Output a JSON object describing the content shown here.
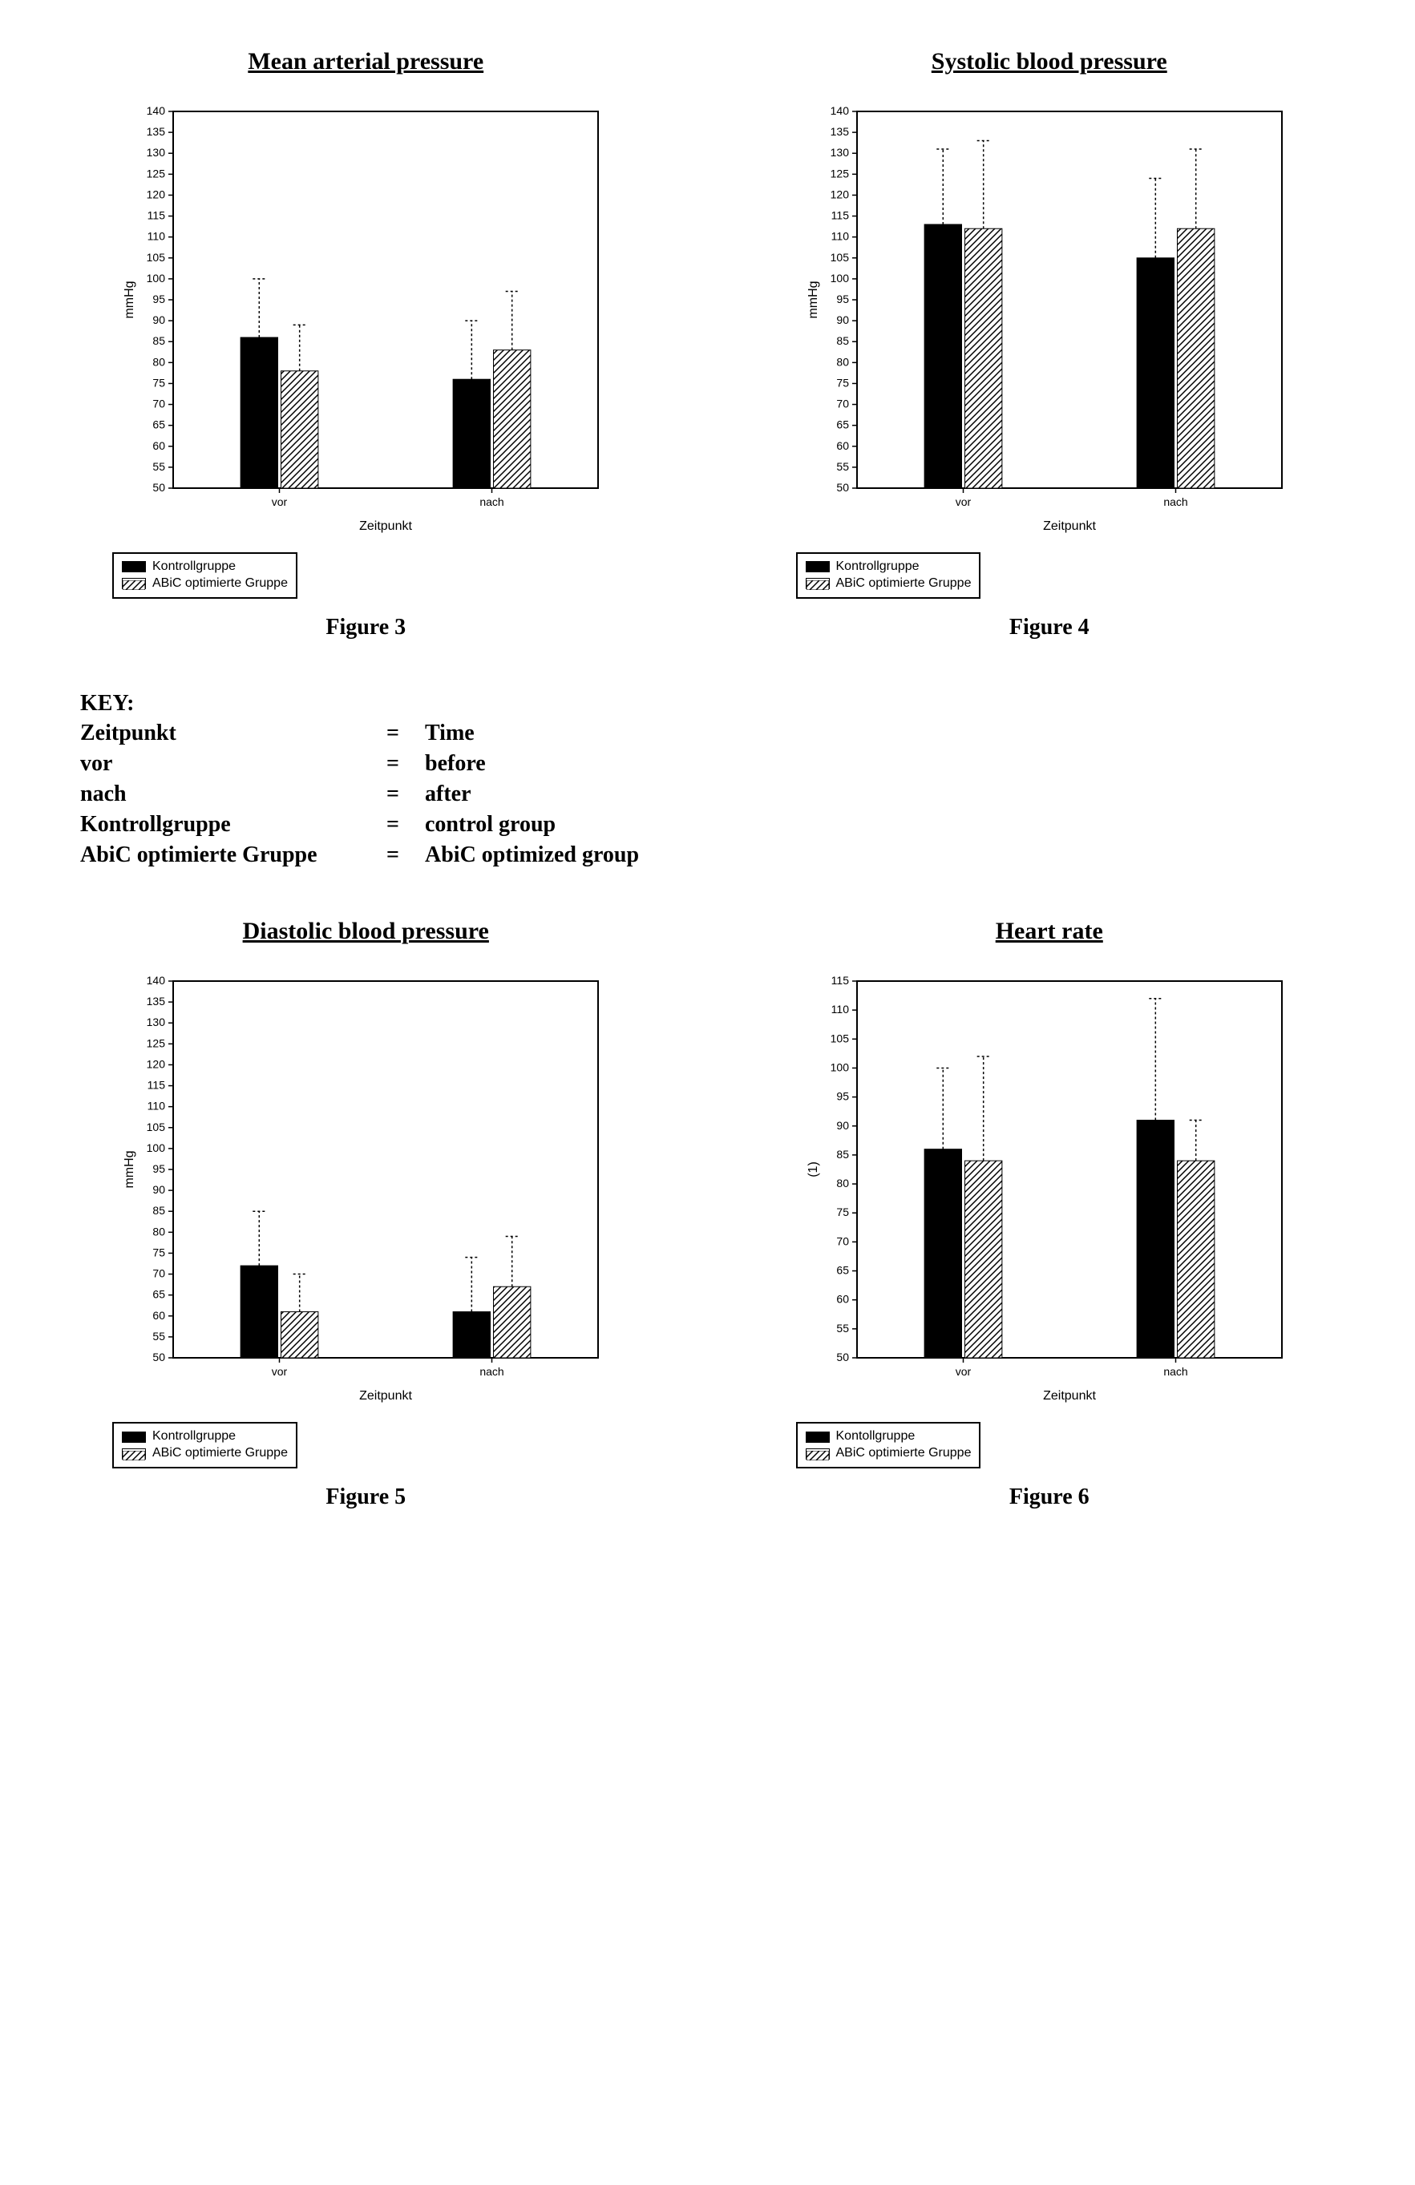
{
  "colors": {
    "background": "#ffffff",
    "axis": "#000000",
    "tick_text": "#000000",
    "gridline": "#000000",
    "error_dash": "#000000",
    "bar_solid": "#000000",
    "bar_hatch_fg": "#000000",
    "bar_hatch_bg": "#ffffff"
  },
  "typography": {
    "title_fontsize": 30,
    "caption_fontsize": 28,
    "axis_label_fontsize": 16,
    "tick_fontsize": 14,
    "legend_fontsize": 16
  },
  "legend_entries": [
    {
      "label": "Kontrollgruppe",
      "style": "solid"
    },
    {
      "label": "ABiC optimierte Gruppe",
      "style": "hatch"
    }
  ],
  "key": {
    "heading": "KEY:",
    "rows": [
      {
        "term": "Zeitpunkt",
        "eq": "=",
        "def": "Time"
      },
      {
        "term": "vor",
        "eq": "=",
        "def": "before"
      },
      {
        "term": "nach",
        "eq": "=",
        "def": "after"
      },
      {
        "term": "Kontrollgruppe",
        "eq": "=",
        "def": "control group"
      },
      {
        "term": "AbiC optimierte Gruppe",
        "eq": "=",
        "def": "AbiC optimized group"
      }
    ]
  },
  "charts": [
    {
      "id": "fig3",
      "title": "Mean arterial pressure",
      "caption": "Figure 3",
      "type": "bar",
      "ylabel": "mmHg",
      "xlabel": "Zeitpunkt",
      "categories": [
        "vor",
        "nach"
      ],
      "ylim": [
        50,
        140
      ],
      "ytick_step": 5,
      "major_tick_every": 1,
      "bar_width": 0.35,
      "group_gap": 0.3,
      "series": [
        {
          "name": "Kontrollgruppe",
          "style": "solid",
          "values": [
            86,
            76
          ],
          "err_up": [
            14,
            14
          ]
        },
        {
          "name": "ABiC optimierte Gruppe",
          "style": "hatch",
          "values": [
            78,
            83
          ],
          "err_up": [
            11,
            14
          ]
        }
      ]
    },
    {
      "id": "fig4",
      "title": "Systolic blood pressure",
      "caption": "Figure 4",
      "type": "bar",
      "ylabel": "mmHg",
      "xlabel": "Zeitpunkt",
      "categories": [
        "vor",
        "nach"
      ],
      "ylim": [
        50,
        140
      ],
      "ytick_step": 5,
      "major_tick_every": 1,
      "bar_width": 0.35,
      "group_gap": 0.3,
      "series": [
        {
          "name": "Kontrollgruppe",
          "style": "solid",
          "values": [
            113,
            105
          ],
          "err_up": [
            18,
            19
          ]
        },
        {
          "name": "ABiC optimierte Gruppe",
          "style": "hatch",
          "values": [
            112,
            112
          ],
          "err_up": [
            21,
            19
          ]
        }
      ]
    },
    {
      "id": "fig5",
      "title": "Diastolic blood pressure",
      "caption": "Figure 5",
      "type": "bar",
      "ylabel": "mmHg",
      "xlabel": "Zeitpunkt",
      "categories": [
        "vor",
        "nach"
      ],
      "ylim": [
        50,
        140
      ],
      "ytick_step": 5,
      "major_tick_every": 1,
      "bar_width": 0.35,
      "group_gap": 0.3,
      "series": [
        {
          "name": "Kontrollgruppe",
          "style": "solid",
          "values": [
            72,
            61
          ],
          "err_up": [
            13,
            13
          ]
        },
        {
          "name": "ABiC optimierte Gruppe",
          "style": "hatch",
          "values": [
            61,
            67
          ],
          "err_up": [
            9,
            12
          ]
        }
      ]
    },
    {
      "id": "fig6",
      "title": "Heart rate",
      "caption": "Figure 6",
      "type": "bar",
      "ylabel": "(1)",
      "xlabel": "Zeitpunkt",
      "categories": [
        "vor",
        "nach"
      ],
      "ylim": [
        50,
        115
      ],
      "ytick_step": 5,
      "major_tick_every": 1,
      "bar_width": 0.35,
      "group_gap": 0.3,
      "series": [
        {
          "name": "Kontollgruppe",
          "style": "solid",
          "values": [
            86,
            91
          ],
          "err_up": [
            14,
            21
          ]
        },
        {
          "name": "ABiC optimierte Gruppe",
          "style": "hatch",
          "values": [
            84,
            84
          ],
          "err_up": [
            18,
            7
          ]
        }
      ]
    }
  ]
}
